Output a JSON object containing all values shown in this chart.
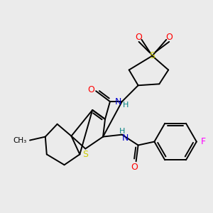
{
  "bg_color": "#ebebeb",
  "fig_size": [
    3.0,
    3.0
  ],
  "dpi": 100,
  "colors": {
    "C": "#000000",
    "N": "#0000cc",
    "O": "#ff0000",
    "S": "#cccc00",
    "F": "#ff00ff",
    "H": "#008080",
    "bond": "#000000"
  },
  "lw": 1.4
}
